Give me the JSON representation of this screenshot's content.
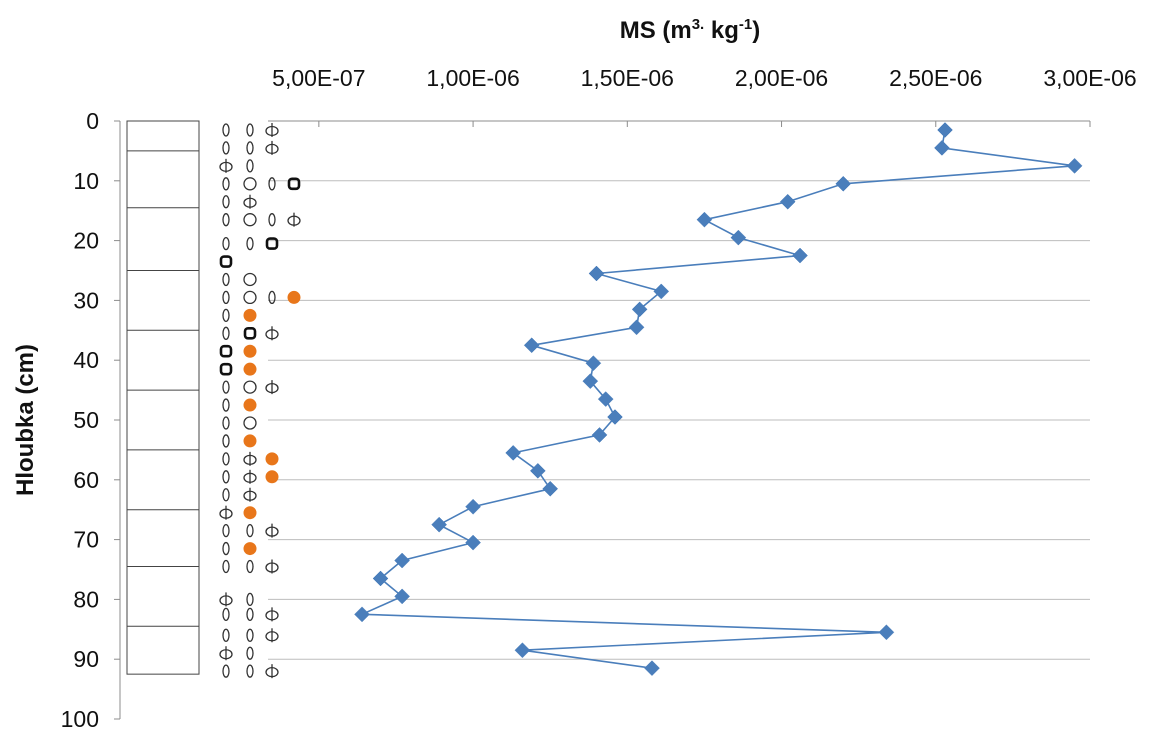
{
  "chart_data": {
    "type": "line",
    "title": "",
    "xlabel": {
      "base": "MS (m",
      "sup1": "3.",
      "mid": " kg",
      "sup2": "-1",
      "end": ")"
    },
    "ylabel": "Hloubka (cm)",
    "xlim": [
      4e-07,
      3e-06
    ],
    "ylim": [
      0,
      100
    ],
    "y_inverted": true,
    "x_axis_position": "top",
    "grid": "horizontal",
    "legend": "none",
    "x_tick_values": [
      5e-07,
      1e-06,
      1.5e-06,
      2e-06,
      2.5e-06,
      3e-06
    ],
    "x_tick_labels": [
      "5,00E-07",
      "1,00E-06",
      "1,50E-06",
      "2,00E-06",
      "2,50E-06",
      "3,00E-06"
    ],
    "y_tick_values": [
      0,
      10,
      20,
      30,
      40,
      50,
      60,
      70,
      80,
      90,
      100
    ],
    "y_tick_labels": [
      "0",
      "10",
      "20",
      "30",
      "40",
      "50",
      "60",
      "70",
      "80",
      "90",
      "100"
    ],
    "series": [
      {
        "marker": "diamond",
        "color": "#4a7ebb",
        "x": [
          2.53e-06,
          2.52e-06,
          2.95e-06,
          2.2e-06,
          2.02e-06,
          1.75e-06,
          1.86e-06,
          2.06e-06,
          1.4e-06,
          1.61e-06,
          1.54e-06,
          1.53e-06,
          1.19e-06,
          1.39e-06,
          1.38e-06,
          1.43e-06,
          1.46e-06,
          1.41e-06,
          1.13e-06,
          1.21e-06,
          1.25e-06,
          1e-06,
          8.9e-07,
          1e-06,
          7.7e-07,
          7e-07,
          7.7e-07,
          6.4e-07,
          2.34e-06,
          1.16e-06,
          1.58e-06
        ],
        "y": [
          1.5,
          4.5,
          7.5,
          10.5,
          13.5,
          16.5,
          19.5,
          22.5,
          25.5,
          28.5,
          31.5,
          34.5,
          37.5,
          40.5,
          43.5,
          46.5,
          49.5,
          52.5,
          55.5,
          58.5,
          61.5,
          64.5,
          67.5,
          70.5,
          73.5,
          76.5,
          79.5,
          82.5,
          85.5,
          88.5,
          91.5
        ]
      }
    ]
  },
  "log": {
    "boundaries": [
      0,
      5,
      14.5,
      25,
      35,
      45,
      55,
      65,
      74.5,
      84.5,
      92.5
    ],
    "symbols": [
      {
        "y": 1.5,
        "items": [
          "dash",
          "dash",
          "phi"
        ]
      },
      {
        "y": 4.5,
        "items": [
          "dash",
          "dash",
          "phi"
        ]
      },
      {
        "y": 7.5,
        "items": [
          "phi",
          "dash"
        ]
      },
      {
        "y": 10.5,
        "items": [
          "dash",
          "circle",
          "dash",
          "black_ring"
        ]
      },
      {
        "y": 13.5,
        "items": [
          "dash",
          "phi"
        ]
      },
      {
        "y": 16.5,
        "items": [
          "dash",
          "circle",
          "dash",
          "phi"
        ]
      },
      {
        "y": 20.5,
        "items": [
          "dash",
          "dash",
          "black_ring"
        ]
      },
      {
        "y": 23.5,
        "items": [
          "black_ring"
        ]
      },
      {
        "y": 26.5,
        "items": [
          "dash",
          "circle"
        ]
      },
      {
        "y": 29.5,
        "items": [
          "dash",
          "circle",
          "dash",
          "orange"
        ]
      },
      {
        "y": 32.5,
        "items": [
          "dash",
          "orange"
        ]
      },
      {
        "y": 35.5,
        "items": [
          "dash",
          "black_ring",
          "phi"
        ]
      },
      {
        "y": 38.5,
        "items": [
          "black_ring",
          "orange"
        ]
      },
      {
        "y": 41.5,
        "items": [
          "black_ring",
          "orange"
        ]
      },
      {
        "y": 44.5,
        "items": [
          "dash",
          "circle",
          "phi"
        ]
      },
      {
        "y": 47.5,
        "items": [
          "dash",
          "orange"
        ]
      },
      {
        "y": 50.5,
        "items": [
          "dash",
          "circle"
        ]
      },
      {
        "y": 53.5,
        "items": [
          "dash",
          "orange"
        ]
      },
      {
        "y": 56.5,
        "items": [
          "dash",
          "phi",
          "orange"
        ]
      },
      {
        "y": 59.5,
        "items": [
          "dash",
          "phi",
          "orange"
        ]
      },
      {
        "y": 62.5,
        "items": [
          "dash",
          "phi"
        ]
      },
      {
        "y": 65.5,
        "items": [
          "phi",
          "orange"
        ]
      },
      {
        "y": 68.5,
        "items": [
          "dash",
          "dash",
          "phi"
        ]
      },
      {
        "y": 71.5,
        "items": [
          "dash",
          "orange"
        ]
      },
      {
        "y": 74.5,
        "items": [
          "dash",
          "dash",
          "phi"
        ]
      },
      {
        "y": 80,
        "items": [
          "phi",
          "dash"
        ]
      },
      {
        "y": 82.5,
        "items": [
          "dash",
          "dash",
          "phi"
        ]
      },
      {
        "y": 86,
        "items": [
          "dash",
          "dash",
          "phi"
        ]
      },
      {
        "y": 89,
        "items": [
          "phi",
          "dash"
        ]
      },
      {
        "y": 92,
        "items": [
          "dash",
          "dash",
          "phi"
        ]
      }
    ]
  }
}
